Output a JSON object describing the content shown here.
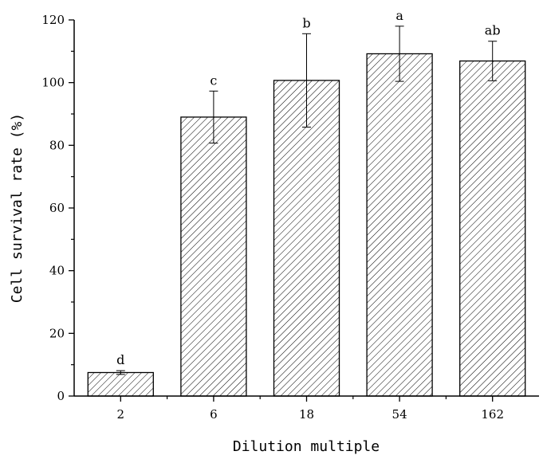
{
  "chart_data": {
    "type": "bar",
    "title": "",
    "xlabel": "Dilution multiple",
    "ylabel": "Cell survival rate (%)",
    "ylim": [
      0,
      120
    ],
    "yticks": [
      0,
      20,
      40,
      60,
      80,
      100,
      120
    ],
    "categories": [
      "2",
      "6",
      "18",
      "54",
      "162"
    ],
    "values": [
      7.5,
      89,
      100.7,
      109.2,
      106.9
    ],
    "errors": [
      0.6,
      8.3,
      14.9,
      8.8,
      6.3
    ],
    "significance_labels": [
      "d",
      "c",
      "b",
      "a",
      "ab"
    ],
    "grid": false,
    "legend": "none",
    "bar_fill": "hatched",
    "colors": {
      "bar_stroke": "#000000",
      "hatch": "#000000",
      "background": "#ffffff"
    }
  }
}
